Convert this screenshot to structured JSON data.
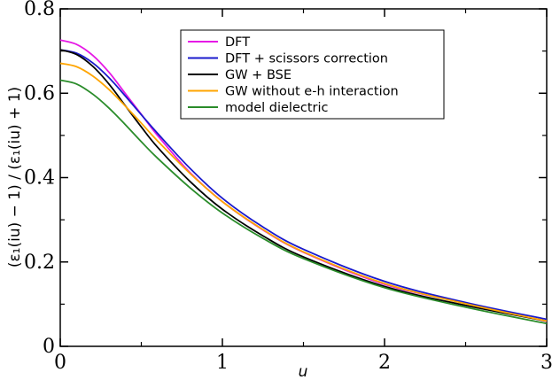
{
  "chart_data": {
    "type": "line",
    "xlabel": "u",
    "ylabel": "(ε₁(iu) − 1) / (ε₁(iu) + 1)",
    "xlim": [
      0,
      3
    ],
    "ylim": [
      0,
      0.8
    ],
    "x_ticks": [
      "0",
      "1",
      "2",
      "3"
    ],
    "y_ticks": [
      "0",
      "0.2",
      "0.4",
      "0.6",
      "0.8"
    ],
    "legend_position": "top-right",
    "grid": false,
    "x": [
      0,
      0.1,
      0.2,
      0.3,
      0.4,
      0.5,
      0.6,
      0.8,
      1.0,
      1.25,
      1.5,
      2.0,
      2.5,
      3.0
    ],
    "series": [
      {
        "name": "DFT",
        "color": "#e619e6",
        "values": [
          0.726,
          0.716,
          0.69,
          0.65,
          0.6,
          0.55,
          0.5,
          0.412,
          0.343,
          0.276,
          0.223,
          0.147,
          0.102,
          0.059
        ]
      },
      {
        "name": "DFT + scissors correction",
        "color": "#1a1acc",
        "values": [
          0.703,
          0.695,
          0.672,
          0.637,
          0.594,
          0.549,
          0.505,
          0.422,
          0.351,
          0.283,
          0.23,
          0.154,
          0.104,
          0.064
        ]
      },
      {
        "name": "GW + BSE",
        "color": "#000000",
        "values": [
          0.703,
          0.692,
          0.664,
          0.622,
          0.571,
          0.52,
          0.472,
          0.391,
          0.325,
          0.262,
          0.212,
          0.142,
          0.097,
          0.06
        ]
      },
      {
        "name": "GW without e-h interaction",
        "color": "#ffa500",
        "values": [
          0.671,
          0.663,
          0.641,
          0.609,
          0.57,
          0.529,
          0.487,
          0.41,
          0.343,
          0.277,
          0.224,
          0.149,
          0.101,
          0.06
        ]
      },
      {
        "name": "model dielectric",
        "color": "#2a8c2a",
        "values": [
          0.631,
          0.622,
          0.598,
          0.565,
          0.526,
          0.485,
          0.446,
          0.376,
          0.316,
          0.256,
          0.208,
          0.139,
          0.093,
          0.054
        ]
      }
    ]
  }
}
